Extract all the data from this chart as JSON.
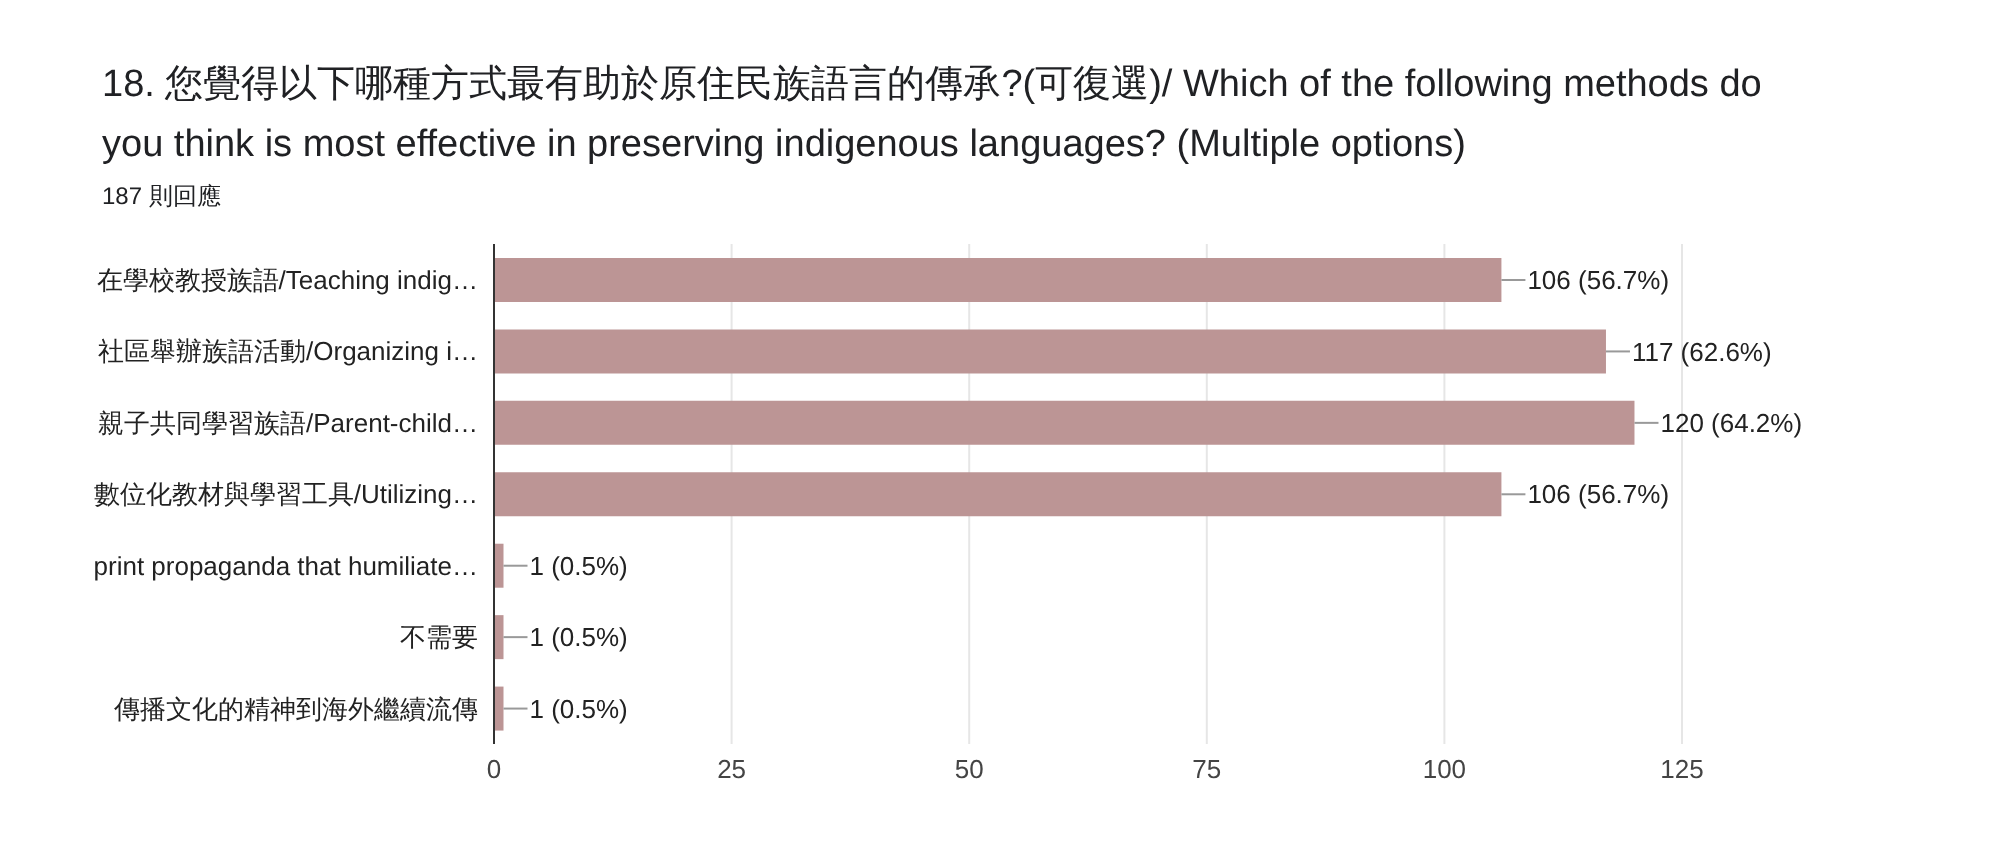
{
  "chart_data": {
    "type": "bar",
    "orientation": "horizontal",
    "title": "18. 您覺得以下哪種方式最有助於原住民族語言的傳承?(可復選)/ Which of the following methods do you think is most effective in preserving indigenous languages? (Multiple options)",
    "subtitle": "187 則回應",
    "categories": [
      "在學校教授族語/Teaching indig…",
      "社區舉辦族語活動/Organizing i…",
      "親子共同學習族語/Parent-child…",
      "數位化教材與學習工具/Utilizing…",
      "print propaganda that humiliate…",
      "不需要",
      "傳播文化的精神到海外繼續流傳"
    ],
    "values": [
      106,
      117,
      120,
      106,
      1,
      1,
      1
    ],
    "value_labels": [
      "106 (56.7%)",
      "117 (62.6%)",
      "120 (64.2%)",
      "106 (56.7%)",
      "1 (0.5%)",
      "1 (0.5%)",
      "1 (0.5%)"
    ],
    "color": "#bc9595",
    "xlim": [
      0,
      125
    ],
    "xticks": [
      0,
      25,
      50,
      75,
      100,
      125
    ],
    "grid": "x",
    "legend": false
  }
}
